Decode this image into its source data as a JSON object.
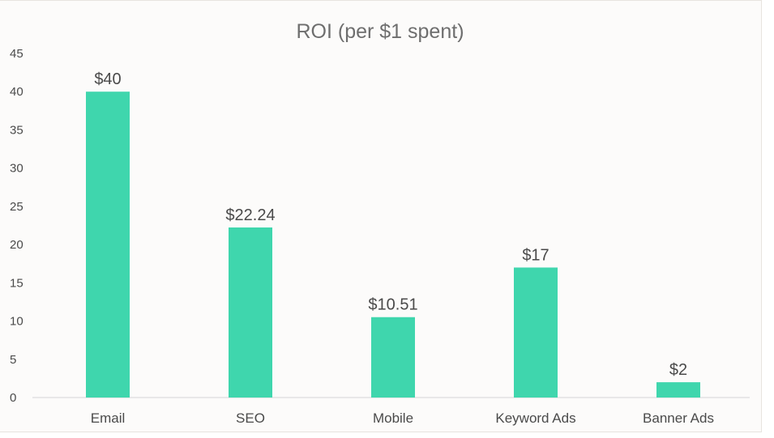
{
  "chart_data": {
    "type": "bar",
    "title": "ROI (per $1 spent)",
    "xlabel": "",
    "ylabel": "",
    "categories": [
      "Email",
      "SEO",
      "Mobile",
      "Keyword Ads",
      "Banner Ads"
    ],
    "values": [
      40,
      22.24,
      10.51,
      17,
      2
    ],
    "data_labels": [
      "$40",
      "$22.24",
      "$10.51",
      "$17",
      "$2"
    ],
    "ylim": [
      0,
      45
    ],
    "yticks": [
      0,
      5,
      10,
      15,
      20,
      25,
      30,
      35,
      40,
      45
    ],
    "grid": false,
    "legend": "none",
    "bar_color": "#3fd6ad",
    "axis_color": "#d6d6d6"
  }
}
